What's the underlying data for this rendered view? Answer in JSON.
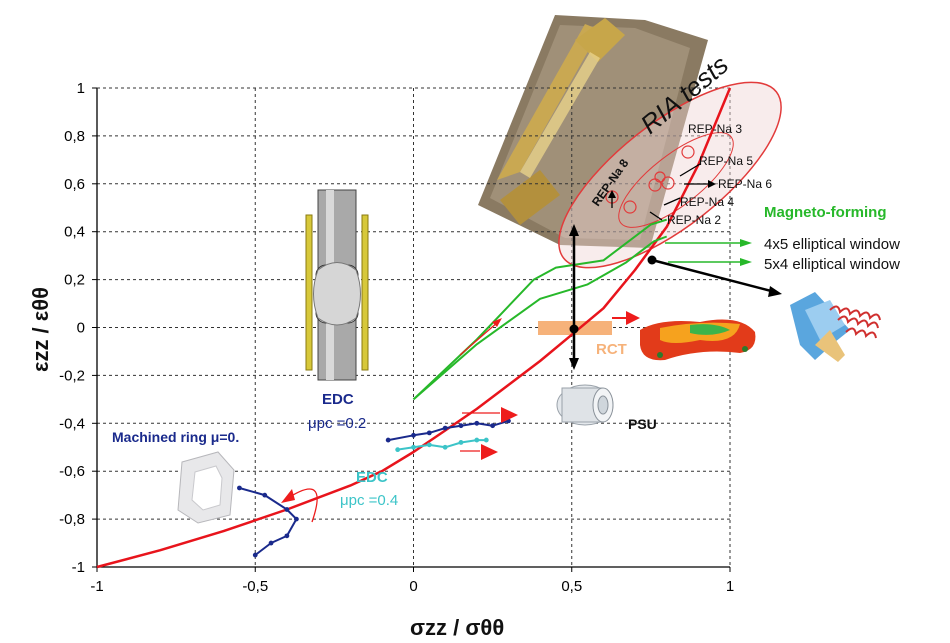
{
  "chart_data": {
    "type": "line",
    "xlim": [
      -1,
      1
    ],
    "ylim": [
      -1,
      1
    ],
    "x_ticks": [
      "-1",
      "-0,5",
      "0",
      "0,5",
      "1"
    ],
    "y_ticks": [
      "1",
      "0,8",
      "0,6",
      "0,4",
      "0,2",
      "0",
      "-0,2",
      "-0,4",
      "-0,6",
      "-0,8",
      "-1"
    ],
    "x_tick_values": [
      -1,
      -0.5,
      0,
      0.5,
      1
    ],
    "y_tick_values": [
      1,
      0.8,
      0.6,
      0.4,
      0.2,
      0,
      -0.2,
      -0.4,
      -0.6,
      -0.8,
      -1
    ],
    "grid": true,
    "xlabel": "σzz / σθθ",
    "ylabel": "εzz / εθθ",
    "colors": {
      "main": "#e8141c",
      "magneto": "#27b82a",
      "edc02": "#1a2a8c",
      "edc04": "#3cc4c8",
      "arrow": "#ee1c1c",
      "rct": "#f6b27a"
    },
    "series": [
      {
        "key": "main",
        "points": [
          [
            -1,
            -1
          ],
          [
            -0.8,
            -0.93
          ],
          [
            -0.6,
            -0.85
          ],
          [
            -0.4,
            -0.76
          ],
          [
            -0.2,
            -0.66
          ],
          [
            -0.1,
            -0.6
          ],
          [
            0,
            -0.52
          ],
          [
            0.1,
            -0.43
          ],
          [
            0.2,
            -0.34
          ],
          [
            0.3,
            -0.24
          ],
          [
            0.4,
            -0.14
          ],
          [
            0.5,
            -0.03
          ],
          [
            0.6,
            0.08
          ],
          [
            0.7,
            0.24
          ],
          [
            0.8,
            0.42
          ],
          [
            0.9,
            0.68
          ],
          [
            1,
            1
          ]
        ]
      },
      {
        "key": "magneto",
        "points": [
          [
            0,
            -0.3
          ],
          [
            0.2,
            -0.07
          ],
          [
            0.4,
            0.12
          ],
          [
            0.55,
            0.18
          ],
          [
            0.67,
            0.27
          ],
          [
            0.76,
            0.36
          ],
          [
            0.8,
            0.38
          ]
        ]
      },
      {
        "key": "magneto",
        "points": [
          [
            0,
            -0.3
          ],
          [
            0.2,
            -0.05
          ],
          [
            0.38,
            0.2
          ],
          [
            0.45,
            0.25
          ],
          [
            0.6,
            0.28
          ],
          [
            0.75,
            0.43
          ],
          [
            0.8,
            0.45
          ]
        ]
      },
      {
        "key": "edc02",
        "points": [
          [
            -0.08,
            -0.47
          ],
          [
            0,
            -0.45
          ],
          [
            0.05,
            -0.44
          ],
          [
            0.1,
            -0.42
          ],
          [
            0.15,
            -0.41
          ],
          [
            0.2,
            -0.4
          ],
          [
            0.25,
            -0.41
          ],
          [
            0.3,
            -0.39
          ]
        ]
      },
      {
        "key": "edc04",
        "points": [
          [
            -0.05,
            -0.51
          ],
          [
            0,
            -0.5
          ],
          [
            0.05,
            -0.49
          ],
          [
            0.1,
            -0.5
          ],
          [
            0.15,
            -0.48
          ],
          [
            0.2,
            -0.47
          ],
          [
            0.23,
            -0.47
          ]
        ]
      },
      {
        "key": "edc02",
        "points": [
          [
            -0.55,
            -0.67
          ],
          [
            -0.47,
            -0.7
          ],
          [
            -0.4,
            -0.76
          ],
          [
            -0.37,
            -0.8
          ],
          [
            -0.4,
            -0.87
          ],
          [
            -0.45,
            -0.9
          ],
          [
            -0.5,
            -0.95
          ]
        ]
      }
    ],
    "annotations": {
      "ria_tests": "RIA tests",
      "rep_na3": "REP-Na 3",
      "rep_na5": "REP-Na 5",
      "rep_na6": "REP-Na 6",
      "rep_na4": "REP-Na 4",
      "rep_na2": "REP-Na 2",
      "rep_na8": "REP-Na 8",
      "magneto_forming": "Magneto-forming",
      "window_4x5": "4x5 elliptical window",
      "window_5x4": "5x4 elliptical window",
      "edc_top": "EDC",
      "mu_02": "μpc =0.2",
      "machined_ring": "Machined ring μ=0.",
      "edc_bottom": "EDC",
      "mu_04": "μpc =0.4",
      "rct": "RCT",
      "psu": "PSU"
    }
  }
}
